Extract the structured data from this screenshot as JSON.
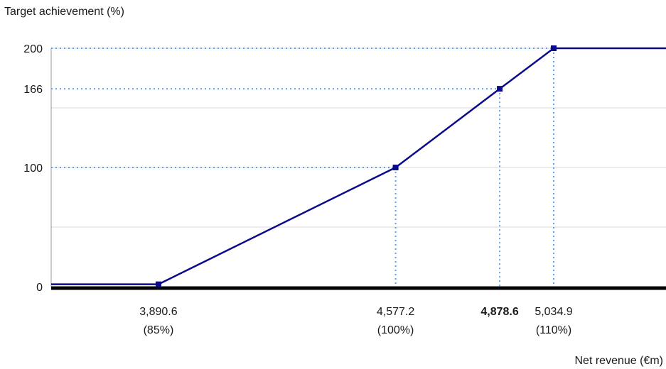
{
  "chart_data": {
    "type": "line",
    "title": "Target achievement (%)",
    "xlabel": "Net revenue (€m)",
    "ylabel": "Target achievement (%)",
    "ylim": [
      0,
      200
    ],
    "grid": true,
    "y_ticks": [
      "0",
      "100",
      "166",
      "200"
    ],
    "y_tick_values": [
      0,
      100,
      166,
      200
    ],
    "x_ticks": [
      {
        "value": 3890.6,
        "label": "3,890.6",
        "sublabel": "(85%)"
      },
      {
        "value": 4577.2,
        "label": "4,577.2",
        "sublabel": "(100%)"
      },
      {
        "value": 4878.6,
        "label": "4,878.6",
        "sublabel": "",
        "highlight": true
      },
      {
        "value": 5034.9,
        "label": "5,034.9",
        "sublabel": "(110%)"
      }
    ],
    "series": [
      {
        "x": [
          3580,
          3890.6,
          4577.2,
          4878.6,
          5034.9,
          5360
        ],
        "y": [
          2,
          2,
          100,
          166,
          200,
          200
        ],
        "markers": [
          3890.6,
          4577.2,
          4878.6,
          5034.9
        ]
      }
    ],
    "colors": {
      "line": "#0a0a8a",
      "marker": "#0a0a8a",
      "guide": "#5aa0f0",
      "highlight_label": "#1a1aa0",
      "baseline": "#000000",
      "grid": "#d9d9d9"
    }
  }
}
